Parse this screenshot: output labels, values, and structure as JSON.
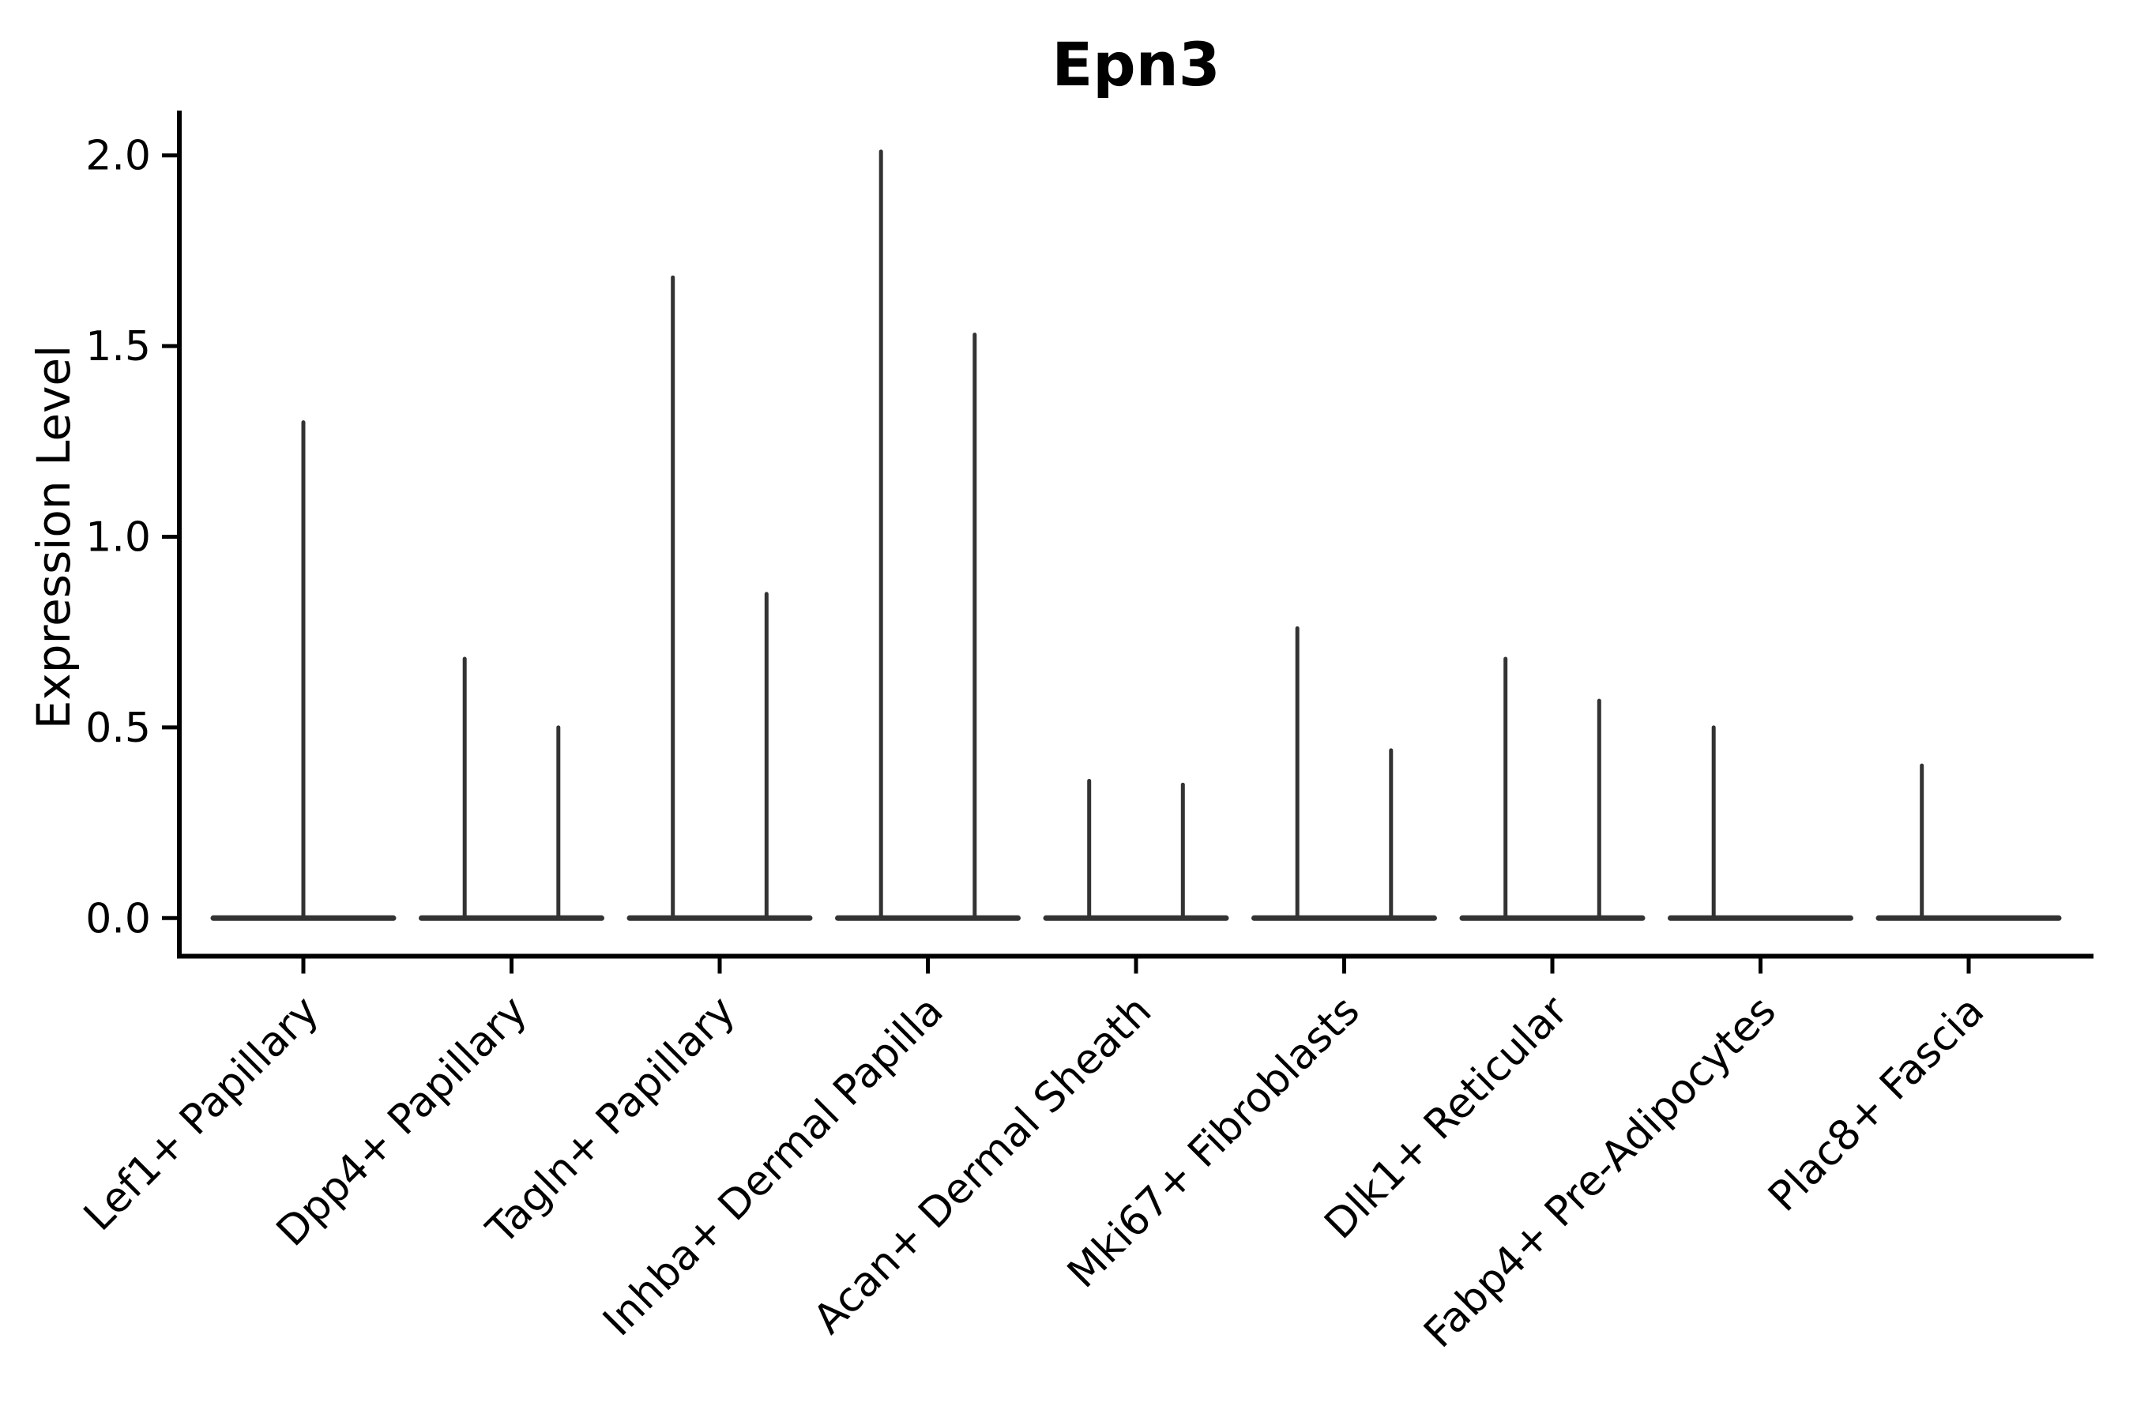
{
  "chart_data": {
    "type": "violin",
    "title": "Epn3",
    "ylabel": "Expression Level",
    "xlabel": "",
    "ylim": [
      0.0,
      2.05
    ],
    "grid": false,
    "legend": "none",
    "x_tick_rotation_deg": 45,
    "violin_color": "#333333",
    "axis_color": "#000000",
    "background_color": "#ffffff",
    "yticks": [
      {
        "value": 0.0,
        "label": "0.0"
      },
      {
        "value": 0.5,
        "label": "0.5"
      },
      {
        "value": 1.0,
        "label": "1.0"
      },
      {
        "value": 1.5,
        "label": "1.5"
      },
      {
        "value": 2.0,
        "label": "2.0"
      }
    ],
    "categories": [
      "Lef1+ Papillary",
      "Dpp4+ Papillary",
      "Tagln+ Papillary",
      "Inhba+ Dermal Papilla",
      "Acan+ Dermal Sheath",
      "Mki67+ Fibroblasts",
      "Dlk1+ Reticular",
      "Fabp4+ Pre-Adipocytes",
      "Plac8+ Fascia"
    ],
    "groups": [
      {
        "label": "Lef1+ Papillary",
        "violins": [
          {
            "slot": "center",
            "max": 1.3
          }
        ]
      },
      {
        "label": "Dpp4+ Papillary",
        "violins": [
          {
            "slot": "left",
            "max": 0.68
          },
          {
            "slot": "right",
            "max": 0.5
          }
        ]
      },
      {
        "label": "Tagln+ Papillary",
        "violins": [
          {
            "slot": "left",
            "max": 1.68
          },
          {
            "slot": "right",
            "max": 0.85
          }
        ]
      },
      {
        "label": "Inhba+ Dermal Papilla",
        "violins": [
          {
            "slot": "left",
            "max": 2.01
          },
          {
            "slot": "right",
            "max": 1.53
          }
        ]
      },
      {
        "label": "Acan+ Dermal Sheath",
        "violins": [
          {
            "slot": "left",
            "max": 0.36
          },
          {
            "slot": "right",
            "max": 0.35
          }
        ]
      },
      {
        "label": "Mki67+ Fibroblasts",
        "violins": [
          {
            "slot": "left",
            "max": 0.76
          },
          {
            "slot": "right",
            "max": 0.44
          }
        ]
      },
      {
        "label": "Dlk1+ Reticular",
        "violins": [
          {
            "slot": "left",
            "max": 0.68
          },
          {
            "slot": "right",
            "max": 0.57
          }
        ]
      },
      {
        "label": "Fabp4+ Pre-Adipocytes",
        "violins": [
          {
            "slot": "left",
            "max": 0.5
          },
          {
            "slot": "right",
            "max": 0.0
          }
        ]
      },
      {
        "label": "Plac8+ Fascia",
        "violins": [
          {
            "slot": "left",
            "max": 0.4
          },
          {
            "slot": "right",
            "max": 0.0
          }
        ]
      }
    ]
  }
}
